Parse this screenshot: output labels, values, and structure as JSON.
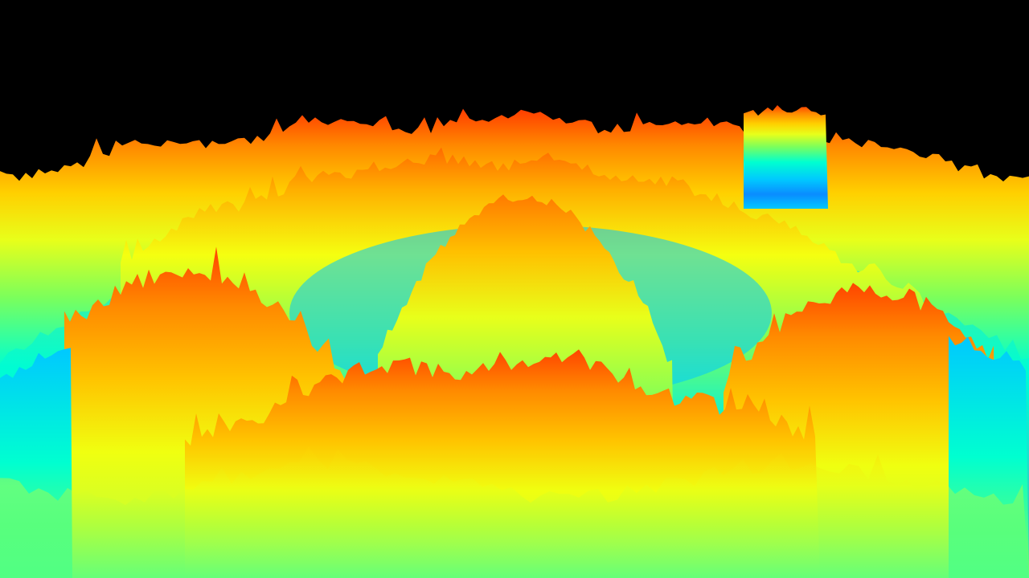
{
  "scene": {
    "background_color": "#000000",
    "colormap": [
      "#0a5cff",
      "#00c8ff",
      "#00ffd0",
      "#7dff5a",
      "#e8ff1a",
      "#ffd000",
      "#ff8a00",
      "#ff3c00"
    ],
    "depth_layers": [
      "far-ridge",
      "outer-ring",
      "mid-ring",
      "inner-basin",
      "central-dome",
      "front-left-massif",
      "front-right-massif",
      "front-foothills"
    ]
  }
}
